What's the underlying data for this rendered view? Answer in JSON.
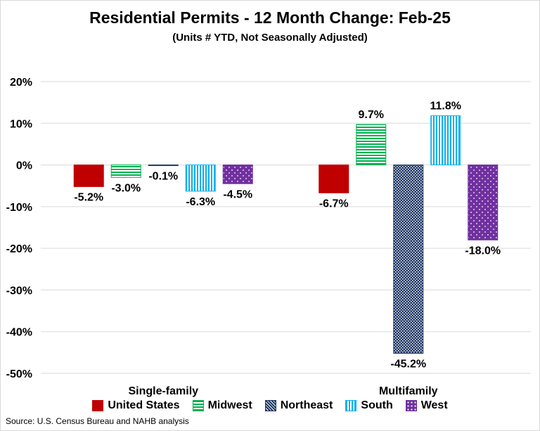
{
  "chart_data": {
    "type": "bar",
    "title": "Residential Permits - 12 Month Change:  Feb-25",
    "subtitle": "(Units # YTD, Not Seasonally Adjusted)",
    "categories": [
      "Single-family",
      "Multifamily"
    ],
    "series": [
      {
        "name": "United States",
        "values": [
          -5.2,
          -6.7
        ],
        "labels": [
          "-5.2%",
          "-6.7%"
        ],
        "color": "#c00000",
        "pattern": "solid"
      },
      {
        "name": "Midwest",
        "values": [
          -3.0,
          9.7
        ],
        "labels": [
          "-3.0%",
          "9.7%"
        ],
        "color": "#00b050",
        "pattern": "horizontal-stripes"
      },
      {
        "name": "Northeast",
        "values": [
          -0.1,
          -45.2
        ],
        "labels": [
          "-0.1%",
          "-45.2%"
        ],
        "color": "#1f3864",
        "pattern": "checkered"
      },
      {
        "name": "South",
        "values": [
          -6.3,
          11.8
        ],
        "labels": [
          "-6.3%",
          "11.8%"
        ],
        "color": "#00b0f0",
        "pattern": "vertical-stripes"
      },
      {
        "name": "West",
        "values": [
          -4.5,
          -18.0
        ],
        "labels": [
          "-4.5%",
          "-18.0%"
        ],
        "color": "#7030a0",
        "pattern": "dotted"
      }
    ],
    "ylim": [
      -50,
      20
    ],
    "yticks": [
      20,
      10,
      0,
      -10,
      -20,
      -30,
      -40,
      -50
    ],
    "ytick_labels": [
      "20%",
      "10%",
      "0%",
      "-10%",
      "-20%",
      "-30%",
      "-40%",
      "-50%"
    ],
    "grid": true,
    "legend_position": "bottom",
    "xlabel": "",
    "ylabel": ""
  },
  "source": "Source: U.S. Census Bureau and NAHB analysis"
}
